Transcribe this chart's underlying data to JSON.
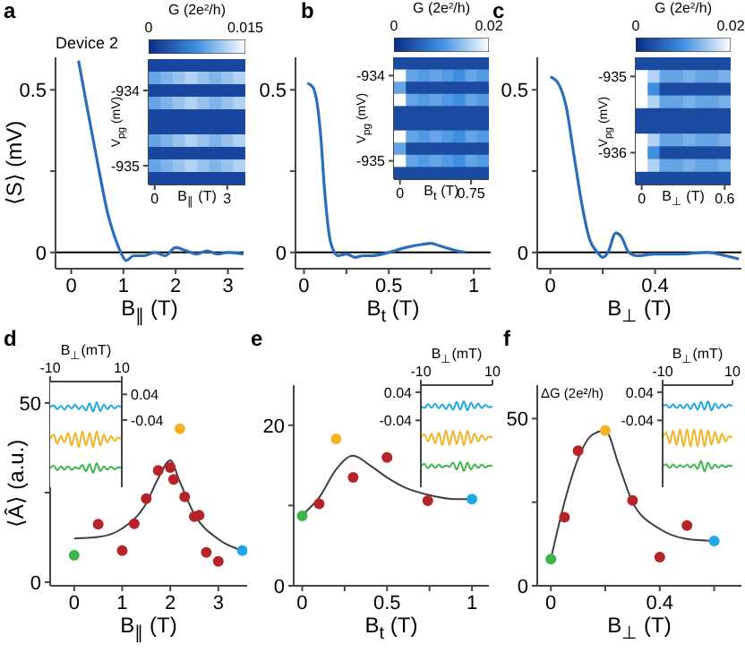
{
  "chart_data": [
    {
      "type": "line",
      "title": "a",
      "xlabel": "B$_{∥}$ (T)",
      "ylabel": "⟨S⟩ (mV)",
      "annotations": [
        "Device 2"
      ],
      "x": [
        0.14,
        0.3,
        0.5,
        0.7,
        0.85,
        0.95,
        1.05,
        1.2,
        1.4,
        1.6,
        1.8,
        2.0,
        2.2,
        2.4,
        2.6,
        2.8,
        3.0,
        3.3
      ],
      "values": [
        0.59,
        0.45,
        0.28,
        0.12,
        0.04,
        0.0,
        -0.025,
        -0.01,
        -0.01,
        0.0,
        -0.01,
        0.015,
        0.005,
        -0.005,
        0.005,
        -0.005,
        0.0,
        -0.005
      ],
      "color": "#2a6ebb",
      "xlim": [
        -0.3,
        3.3
      ],
      "ylim": [
        -0.05,
        0.6
      ],
      "xticks": [
        0,
        1,
        2,
        3
      ],
      "yticks": [
        0,
        {
          "value": 0.25,
          "label": null
        },
        0.5
      ],
      "ref_lines": [
        {
          "axis": "y",
          "value": 0,
          "color": "#000000"
        }
      ]
    },
    {
      "type": "heatmap",
      "xlabel": "B$_{∥}$ (T)",
      "ylabel": "V$_{pg}$ (mV)",
      "clabel": "G (2e²/h)",
      "categories": [
        "0",
        null,
        null,
        null,
        null,
        null,
        "3",
        null
      ],
      "y_categories": [
        null,
        null,
        "-934",
        null,
        null,
        null,
        null,
        null,
        "-935",
        null
      ],
      "cells": [
        [
          0.002,
          0.002,
          0.002,
          0.002,
          0.002,
          0.002,
          0.002,
          0.002
        ],
        [
          0.009,
          0.01,
          0.011,
          0.012,
          0.011,
          0.01,
          0.011,
          0.012
        ],
        [
          0.002,
          0.002,
          0.002,
          0.002,
          0.002,
          0.002,
          0.002,
          0.002
        ],
        [
          0.009,
          0.01,
          0.011,
          0.012,
          0.011,
          0.01,
          0.011,
          0.012
        ],
        [
          0.002,
          0.002,
          0.002,
          0.002,
          0.002,
          0.002,
          0.002,
          0.002
        ],
        [
          0.002,
          0.002,
          0.002,
          0.002,
          0.002,
          0.002,
          0.002,
          0.002
        ],
        [
          0.009,
          0.01,
          0.011,
          0.012,
          0.011,
          0.01,
          0.011,
          0.012
        ],
        [
          0.002,
          0.002,
          0.002,
          0.002,
          0.002,
          0.002,
          0.002,
          0.002
        ],
        [
          0.009,
          0.01,
          0.011,
          0.012,
          0.011,
          0.01,
          0.011,
          0.012
        ],
        [
          0.002,
          0.002,
          0.002,
          0.002,
          0.002,
          0.002,
          0.002,
          0.002
        ]
      ],
      "clim": [
        0,
        0.015
      ],
      "cticks": [
        0,
        0.015
      ]
    },
    {
      "type": "line",
      "title": "b",
      "xlabel": "B$_{t}$ (T)",
      "x": [
        0.02,
        0.05,
        0.08,
        0.1,
        0.12,
        0.15,
        0.18,
        0.2,
        0.25,
        0.3,
        0.35,
        0.4,
        0.5,
        0.6,
        0.7,
        0.75,
        0.8,
        0.9,
        0.95
      ],
      "values": [
        0.52,
        0.51,
        0.45,
        0.35,
        0.2,
        0.05,
        0.0,
        -0.01,
        -0.005,
        -0.015,
        -0.01,
        -0.01,
        0.0,
        0.015,
        0.025,
        0.028,
        0.02,
        0.005,
        0.0
      ],
      "color": "#2a6ebb",
      "xlim": [
        -0.05,
        1.1
      ],
      "ylim": [
        -0.05,
        0.6
      ],
      "xticks": [
        0,
        {
          "value": 0.25,
          "label": null
        },
        0.5,
        {
          "value": 0.75,
          "label": null
        },
        1
      ],
      "yticks": [
        0,
        {
          "value": 0.25,
          "label": null
        },
        0.5
      ],
      "ref_lines": [
        {
          "axis": "y",
          "value": 0,
          "color": "#000000"
        }
      ]
    },
    {
      "type": "heatmap",
      "xlabel": "B$_{t}$ (T)",
      "ylabel": "V$_{pg}$ (mV)",
      "clabel": "G (2e²/h)",
      "categories": [
        "0",
        null,
        null,
        null,
        null,
        null,
        "0.75",
        null
      ],
      "y_categories": [
        null,
        "-934",
        null,
        null,
        null,
        null,
        null,
        null,
        "-935",
        null
      ],
      "cells": [
        [
          0.003,
          0.003,
          0.003,
          0.003,
          0.003,
          0.003,
          0.003,
          0.003
        ],
        [
          0.02,
          0.012,
          0.011,
          0.012,
          0.011,
          0.01,
          0.012,
          0.011
        ],
        [
          0.012,
          0.003,
          0.003,
          0.003,
          0.003,
          0.003,
          0.003,
          0.003
        ],
        [
          0.02,
          0.012,
          0.011,
          0.012,
          0.011,
          0.01,
          0.012,
          0.011
        ],
        [
          0.003,
          0.003,
          0.003,
          0.003,
          0.003,
          0.003,
          0.003,
          0.003
        ],
        [
          0.003,
          0.003,
          0.003,
          0.003,
          0.003,
          0.003,
          0.003,
          0.003
        ],
        [
          0.02,
          0.012,
          0.011,
          0.012,
          0.011,
          0.01,
          0.012,
          0.011
        ],
        [
          0.012,
          0.003,
          0.003,
          0.003,
          0.003,
          0.003,
          0.003,
          0.003
        ],
        [
          0.02,
          0.012,
          0.011,
          0.012,
          0.011,
          0.01,
          0.012,
          0.011
        ],
        [
          0.003,
          0.003,
          0.003,
          0.003,
          0.003,
          0.003,
          0.003,
          0.003
        ]
      ],
      "clim": [
        0,
        0.02
      ],
      "cticks": [
        0,
        0.02
      ]
    },
    {
      "type": "line",
      "title": "c",
      "xlabel": "B$_{⊥}$ (T)",
      "x": [
        0,
        0.03,
        0.06,
        0.09,
        0.12,
        0.15,
        0.18,
        0.2,
        0.22,
        0.25,
        0.27,
        0.3,
        0.33,
        0.4,
        0.5,
        0.6,
        0.67,
        0.72
      ],
      "values": [
        0.54,
        0.52,
        0.45,
        0.3,
        0.15,
        0.04,
        0.0,
        -0.015,
        0.0,
        0.06,
        0.05,
        0.0,
        -0.01,
        -0.005,
        -0.005,
        0.0,
        -0.01,
        -0.02
      ],
      "color": "#2a6ebb",
      "xlim": [
        -0.05,
        0.73
      ],
      "ylim": [
        -0.05,
        0.6
      ],
      "xticks": [
        0,
        {
          "value": 0.2,
          "label": null
        },
        0.4
      ],
      "yticks": [
        0,
        {
          "value": 0.25,
          "label": null
        },
        0.5
      ],
      "ref_lines": [
        {
          "axis": "y",
          "value": 0,
          "color": "#000000"
        }
      ]
    },
    {
      "type": "heatmap",
      "xlabel": "B$_{⊥}$ (T)",
      "ylabel": "V$_{pg}$ (mV)",
      "clabel": "G (2e²/h)",
      "categories": [
        "0",
        null,
        null,
        null,
        null,
        null,
        null,
        "0.6"
      ],
      "y_categories": [
        null,
        "-935",
        null,
        null,
        null,
        null,
        null,
        "-936",
        null,
        null
      ],
      "cells": [
        [
          0.003,
          0.003,
          0.003,
          0.003,
          0.003,
          0.003,
          0.003,
          0.003
        ],
        [
          0.02,
          0.016,
          0.012,
          0.012,
          0.013,
          0.012,
          0.012,
          0.013
        ],
        [
          0.02,
          0.01,
          0.003,
          0.003,
          0.003,
          0.003,
          0.003,
          0.003
        ],
        [
          0.02,
          0.016,
          0.012,
          0.012,
          0.013,
          0.012,
          0.012,
          0.013
        ],
        [
          0.003,
          0.003,
          0.003,
          0.003,
          0.003,
          0.003,
          0.003,
          0.003
        ],
        [
          0.003,
          0.003,
          0.003,
          0.003,
          0.003,
          0.003,
          0.003,
          0.003
        ],
        [
          0.02,
          0.016,
          0.012,
          0.012,
          0.013,
          0.012,
          0.012,
          0.013
        ],
        [
          0.02,
          0.01,
          0.003,
          0.003,
          0.003,
          0.003,
          0.003,
          0.003
        ],
        [
          0.02,
          0.016,
          0.012,
          0.012,
          0.013,
          0.012,
          0.012,
          0.013
        ],
        [
          0.003,
          0.003,
          0.003,
          0.003,
          0.003,
          0.003,
          0.003,
          0.003
        ]
      ],
      "clim": [
        0,
        0.02
      ],
      "cticks": [
        0,
        0.02
      ]
    },
    {
      "type": "scatter",
      "title": "d",
      "xlabel": "B$_{∥}$ (T)",
      "ylabel": "⟨Â⟩ (a.u.)",
      "series": [
        {
          "type": "scatter",
          "marker": "circle",
          "x": [
            0,
            0.5,
            1,
            1.25,
            1.5,
            1.75,
            2,
            2.07,
            2.3,
            2.5,
            2.6,
            2.75,
            3,
            2.2,
            3.5
          ],
          "values": [
            7.5,
            16.2,
            8.8,
            16.3,
            23.3,
            31.2,
            32,
            28.7,
            23.8,
            18.3,
            18.7,
            8.3,
            5.8,
            42.8,
            8.8
          ],
          "colors": [
            "#3cb54a",
            "#b5232b",
            "#b5232b",
            "#b5232b",
            "#b5232b",
            "#b5232b",
            "#b5232b",
            "#b5232b",
            "#b5232b",
            "#b5232b",
            "#b5232b",
            "#b5232b",
            "#b5232b",
            "#f5b324",
            "#1ea7e6"
          ]
        },
        {
          "type": "line",
          "x": [
            0,
            0.5,
            1,
            1.5,
            1.75,
            2,
            2.2,
            2.5,
            3,
            3.5
          ],
          "values": [
            12.2,
            12.6,
            15,
            22,
            29,
            34,
            28,
            19,
            12,
            8.8
          ],
          "color": "#404040"
        }
      ],
      "xlim": [
        -0.5,
        3.6
      ],
      "ylim": [
        -1,
        56
      ],
      "xticks": [
        0,
        1,
        2,
        3
      ],
      "yticks": [
        0,
        {
          "value": 25,
          "label": null
        },
        50
      ]
    },
    {
      "type": "line",
      "xlabel": "B$_{⊥}$(mT)",
      "x": [
        -10,
        -9,
        -8,
        -7,
        -6,
        -5,
        -4,
        -3,
        -2,
        -1,
        0,
        1,
        2,
        3,
        4,
        5,
        6,
        7,
        8,
        9,
        10
      ],
      "series": [
        {
          "axis": "y2",
          "color": "#1ea7e6",
          "values": [
            0,
            0.006,
            -0.006,
            0.004,
            -0.008,
            0.006,
            -0.004,
            0.008,
            -0.006,
            0.004,
            -0.01,
            0.012,
            -0.014,
            0.016,
            -0.012,
            0.008,
            -0.006,
            0.006,
            -0.004,
            0.004,
            0
          ]
        },
        {
          "axis": "y2",
          "color": "#f5b324",
          "values": [
            -0.1,
            -0.085,
            -0.115,
            -0.09,
            -0.11,
            -0.08,
            -0.12,
            -0.08,
            -0.125,
            -0.075,
            -0.12,
            -0.08,
            -0.125,
            -0.075,
            -0.12,
            -0.085,
            -0.11,
            -0.09,
            -0.105,
            -0.095,
            -0.1
          ]
        },
        {
          "axis": "y2",
          "color": "#3cb54a",
          "values": [
            -0.19,
            -0.183,
            -0.197,
            -0.185,
            -0.195,
            -0.184,
            -0.196,
            -0.188,
            -0.192,
            -0.18,
            -0.2,
            -0.178,
            -0.205,
            -0.175,
            -0.2,
            -0.185,
            -0.195,
            -0.186,
            -0.194,
            -0.188,
            -0.19
          ]
        }
      ],
      "xlim": [
        -10,
        10
      ],
      "xticks": [
        -10,
        10
      ],
      "y2lim": [
        -0.25,
        0.08
      ],
      "y2ticks": [
        0.04,
        -0.04
      ]
    },
    {
      "type": "scatter",
      "title": "e",
      "xlabel": "B$_{t}$ (T)",
      "series": [
        {
          "type": "scatter",
          "marker": "circle",
          "x": [
            0,
            0.1,
            0.2,
            0.3,
            0.5,
            0.74,
            1
          ],
          "values": [
            8.7,
            10.2,
            18.3,
            13.5,
            16,
            10.6,
            10.8
          ],
          "colors": [
            "#3cb54a",
            "#b5232b",
            "#f5b324",
            "#b5232b",
            "#b5232b",
            "#b5232b",
            "#1ea7e6"
          ]
        },
        {
          "type": "line",
          "x": [
            0,
            0.1,
            0.2,
            0.3,
            0.4,
            0.5,
            0.6,
            0.75,
            0.9,
            1
          ],
          "values": [
            8.8,
            11,
            14.5,
            16.2,
            15,
            13.5,
            12.3,
            11.3,
            10.8,
            10.8
          ],
          "color": "#404040"
        }
      ],
      "xlim": [
        -0.05,
        1.1
      ],
      "ylim": [
        0,
        25
      ],
      "xticks": [
        0,
        {
          "value": 0.25,
          "label": null
        },
        0.5,
        {
          "value": 0.75,
          "label": null
        },
        1
      ],
      "yticks": [
        0,
        {
          "value": 10,
          "label": null
        },
        20
      ]
    },
    {
      "type": "line",
      "xlabel": "B$_{⊥}$(mT)",
      "x": [
        -10,
        -9,
        -8,
        -7,
        -6,
        -5,
        -4,
        -3,
        -2,
        -1,
        0,
        1,
        2,
        3,
        4,
        5,
        6,
        7,
        8,
        9,
        10
      ],
      "series": [
        {
          "color": "#1ea7e6",
          "values": [
            0,
            -0.005,
            0.006,
            -0.004,
            0.007,
            -0.006,
            0.005,
            -0.008,
            0.006,
            -0.01,
            0.012,
            -0.01,
            0.014,
            -0.012,
            0.01,
            -0.006,
            0.008,
            -0.005,
            0.004,
            -0.003,
            0
          ]
        },
        {
          "color": "#f5b324",
          "values": [
            -0.09,
            -0.08,
            -0.1,
            -0.078,
            -0.105,
            -0.075,
            -0.11,
            -0.07,
            -0.11,
            -0.07,
            -0.108,
            -0.072,
            -0.112,
            -0.07,
            -0.105,
            -0.078,
            -0.1,
            -0.082,
            -0.096,
            -0.086,
            -0.09
          ]
        },
        {
          "color": "#3cb54a",
          "values": [
            -0.17,
            -0.164,
            -0.176,
            -0.165,
            -0.175,
            -0.166,
            -0.174,
            -0.168,
            -0.172,
            -0.16,
            -0.18,
            -0.158,
            -0.184,
            -0.16,
            -0.18,
            -0.165,
            -0.175,
            -0.166,
            -0.174,
            -0.168,
            -0.17
          ]
        }
      ],
      "xlim": [
        -10,
        10
      ],
      "xticks": [
        -10,
        10
      ],
      "ylim": [
        -0.23,
        0.06
      ],
      "yticks": [
        0.04,
        -0.04
      ]
    },
    {
      "type": "scatter",
      "title": "f",
      "xlabel": "B$_{⊥}$ (T)",
      "series": [
        {
          "type": "scatter",
          "marker": "circle",
          "x": [
            0,
            0.05,
            0.1,
            0.2,
            0.3,
            0.4,
            0.5,
            0.6
          ],
          "values": [
            8,
            20.5,
            40.4,
            46.4,
            25.5,
            8.6,
            18,
            13.4
          ],
          "colors": [
            "#3cb54a",
            "#b5232b",
            "#b5232b",
            "#f5b324",
            "#b5232b",
            "#b5232b",
            "#b5232b",
            "#1ea7e6"
          ]
        },
        {
          "type": "line",
          "x": [
            0,
            0.05,
            0.1,
            0.15,
            0.2,
            0.25,
            0.3,
            0.4,
            0.5,
            0.6
          ],
          "values": [
            8,
            25,
            38,
            45,
            46.4,
            36,
            25,
            17,
            14,
            13.4
          ],
          "color": "#404040"
        }
      ],
      "xlim": [
        -0.05,
        0.7
      ],
      "ylim": [
        0,
        60
      ],
      "xticks": [
        0,
        {
          "value": 0.2,
          "label": null
        },
        0.4,
        {
          "value": 0.6,
          "label": null
        }
      ],
      "yticks": [
        0,
        {
          "value": 25,
          "label": null
        },
        50
      ]
    },
    {
      "type": "line",
      "xlabel": "B$_{⊥}$(mT)",
      "ylabel": "ΔG (2e²/h)",
      "x": [
        -10,
        -9,
        -8,
        -7,
        -6,
        -5,
        -4,
        -3,
        -2,
        -1,
        0,
        1,
        2,
        3,
        4,
        5,
        6,
        7,
        8,
        9,
        10
      ],
      "series": [
        {
          "color": "#1ea7e6",
          "values": [
            0,
            0.004,
            -0.004,
            0.005,
            -0.005,
            0.004,
            -0.006,
            0.006,
            -0.008,
            0.008,
            -0.01,
            0.012,
            -0.01,
            0.014,
            -0.012,
            0.008,
            -0.006,
            0.005,
            -0.004,
            0.004,
            0
          ]
        },
        {
          "color": "#f5b324",
          "values": [
            -0.09,
            -0.075,
            -0.105,
            -0.07,
            -0.11,
            -0.065,
            -0.115,
            -0.065,
            -0.115,
            -0.065,
            -0.115,
            -0.065,
            -0.115,
            -0.068,
            -0.11,
            -0.072,
            -0.105,
            -0.078,
            -0.1,
            -0.085,
            -0.09
          ]
        },
        {
          "color": "#3cb54a",
          "values": [
            -0.17,
            -0.165,
            -0.175,
            -0.166,
            -0.174,
            -0.167,
            -0.173,
            -0.166,
            -0.174,
            -0.165,
            -0.178,
            -0.155,
            -0.185,
            -0.16,
            -0.178,
            -0.166,
            -0.174,
            -0.167,
            -0.173,
            -0.168,
            -0.17
          ]
        }
      ],
      "xlim": [
        -10,
        10
      ],
      "xticks": [
        -10,
        10
      ],
      "ylim": [
        -0.23,
        0.06
      ],
      "yticks": [
        0.04,
        -0.04
      ]
    }
  ]
}
